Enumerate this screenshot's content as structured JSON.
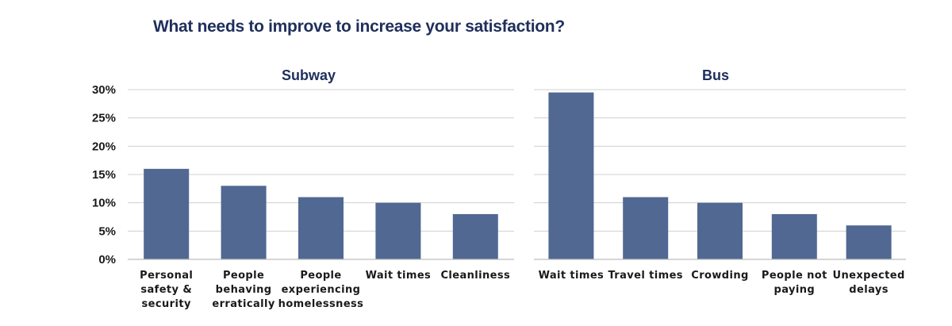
{
  "title": "What needs to improve to increase your satisfaction?",
  "chart_data": [
    {
      "type": "bar",
      "title": "Subway",
      "categories": [
        "Personal safety & security",
        "People behaving erratically",
        "People experiencing homelessness",
        "Wait times",
        "Cleanliness"
      ],
      "category_lines": [
        [
          "Personal",
          "safety &",
          "security"
        ],
        [
          "People",
          "behaving",
          "erratically"
        ],
        [
          "People",
          "experiencing",
          "homelessness"
        ],
        [
          "Wait times"
        ],
        [
          "Cleanliness"
        ]
      ],
      "values": [
        16,
        13,
        11,
        10,
        8
      ],
      "ylim": [
        0,
        30
      ],
      "yticks": [
        "0%",
        "5%",
        "10%",
        "15%",
        "20%",
        "25%",
        "30%"
      ],
      "ytick_values": [
        0,
        5,
        10,
        15,
        20,
        25,
        30
      ],
      "grid": true,
      "color": "#506892"
    },
    {
      "type": "bar",
      "title": "Bus",
      "categories": [
        "Wait times",
        "Travel times",
        "Crowding",
        "People not paying",
        "Unexpected delays"
      ],
      "category_lines": [
        [
          "Wait times"
        ],
        [
          "Travel times"
        ],
        [
          "Crowding"
        ],
        [
          "People not",
          "paying"
        ],
        [
          "Unexpected",
          "delays"
        ]
      ],
      "values": [
        29.5,
        11,
        10,
        8,
        6
      ],
      "ylim": [
        0,
        30
      ],
      "grid": true,
      "color": "#506892"
    }
  ]
}
